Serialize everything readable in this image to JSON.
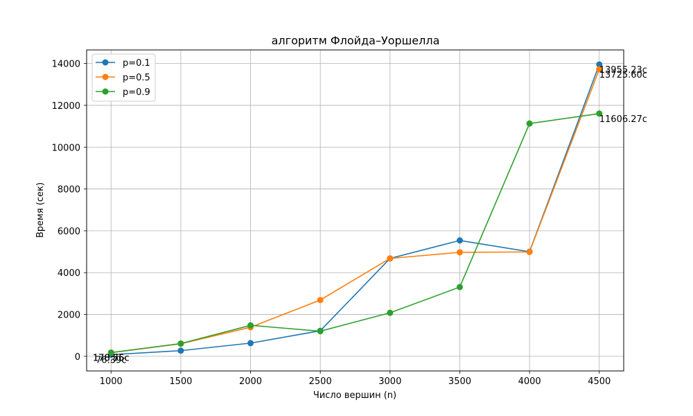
{
  "chart_data": {
    "type": "line",
    "title": "алгоритм Флойда–Уоршелла",
    "xlabel": "Число вершин (n)",
    "ylabel": "Время (сек)",
    "x": [
      1000,
      1500,
      2000,
      2500,
      3000,
      3500,
      4000,
      4500
    ],
    "xlim": [
      825,
      4675
    ],
    "ylim": [
      -700,
      14650
    ],
    "xticks": [
      1000,
      1500,
      2000,
      2500,
      3000,
      3500,
      4000,
      4500
    ],
    "yticks": [
      0,
      2000,
      4000,
      6000,
      8000,
      10000,
      12000,
      14000
    ],
    "grid": true,
    "legend_position": "top-left",
    "series": [
      {
        "name": "p=0.1",
        "color": "#1f77b4",
        "values": [
          76.39,
          270,
          630,
          1220,
          4680,
          5540,
          5000,
          13955.23
        ],
        "labels": [
          {
            "index": 0,
            "text": "76.39с"
          },
          {
            "index": 7,
            "text": "13955.23с"
          }
        ]
      },
      {
        "name": "p=0.5",
        "color": "#ff7f0e",
        "values": [
          170.56,
          600,
          1390,
          2690,
          4680,
          4970,
          4990,
          13725.6
        ],
        "labels": [
          {
            "index": 0,
            "text": "170.56с"
          },
          {
            "index": 7,
            "text": "13725.60с"
          }
        ]
      },
      {
        "name": "p=0.9",
        "color": "#2ca02c",
        "values": [
          178.75,
          610,
          1480,
          1200,
          2080,
          3310,
          11130,
          11606.27
        ],
        "labels": [
          {
            "index": 0,
            "text": "178.75с"
          },
          {
            "index": 7,
            "text": "11606.27с"
          }
        ]
      }
    ]
  }
}
